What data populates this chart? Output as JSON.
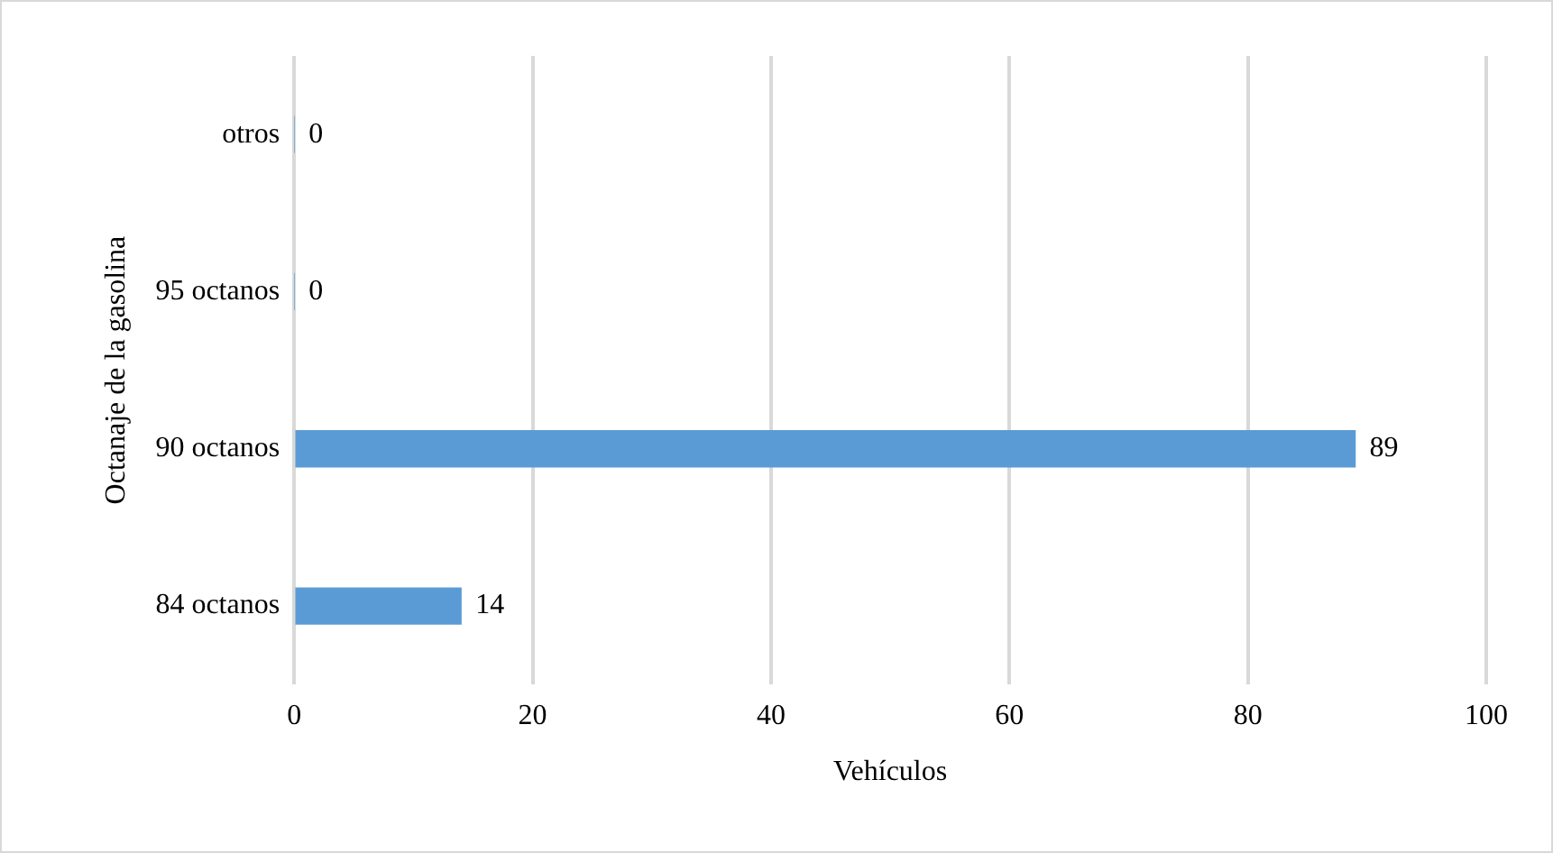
{
  "chart_data": {
    "type": "bar",
    "orientation": "horizontal",
    "xlabel": "Vehículos",
    "ylabel": "Octanaje de la gasolina",
    "categories": [
      "otros",
      "95 octanos",
      "90 octanos",
      "84 octanos"
    ],
    "values": [
      0,
      0,
      89,
      14
    ],
    "color": "#5b9bd5",
    "xlim": [
      0,
      100
    ],
    "xticks": [
      0,
      20,
      40,
      60,
      80,
      100
    ],
    "grid": "x",
    "data_labels": true
  }
}
